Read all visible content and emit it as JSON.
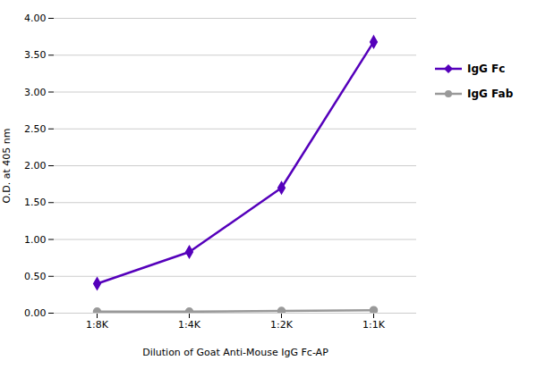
{
  "chart_data": {
    "type": "line",
    "xlabel": "Dilution of Goat Anti-Mouse IgG Fc-AP",
    "ylabel": "O.D. at 405 nm",
    "categories": [
      "1:8K",
      "1:4K",
      "1:2K",
      "1:1K"
    ],
    "series": [
      {
        "name": "IgG Fc",
        "color": "#5500bb",
        "marker": "diamond",
        "values": [
          0.4,
          0.83,
          1.7,
          3.68
        ]
      },
      {
        "name": "IgG Fab",
        "color": "#999999",
        "marker": "circle",
        "values": [
          0.02,
          0.02,
          0.03,
          0.04
        ]
      }
    ],
    "ylim": [
      0.0,
      4.0
    ],
    "yticks": [
      {
        "value": 0.0,
        "label": "0.00"
      },
      {
        "value": 0.5,
        "label": "0.50"
      },
      {
        "value": 1.0,
        "label": "1.00"
      },
      {
        "value": 1.5,
        "label": "1.50"
      },
      {
        "value": 2.0,
        "label": "2.00"
      },
      {
        "value": 2.5,
        "label": "2.50"
      },
      {
        "value": 3.0,
        "label": "3.00"
      },
      {
        "value": 3.5,
        "label": "3.50"
      },
      {
        "value": 4.0,
        "label": "4.00"
      }
    ],
    "grid": true,
    "legend": "right"
  }
}
